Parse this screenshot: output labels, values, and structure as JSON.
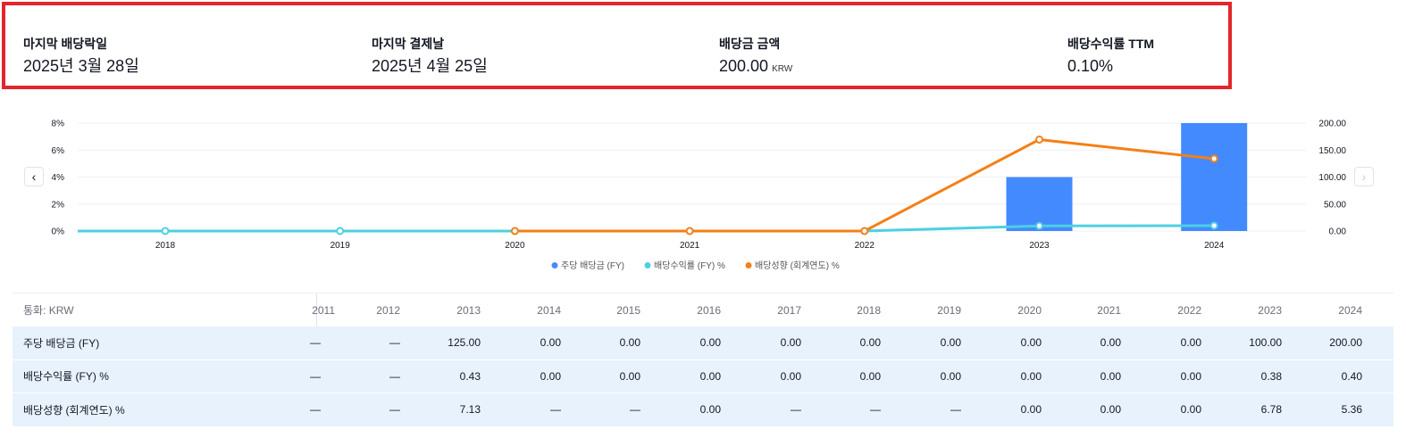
{
  "summary": {
    "ex_date_label": "마지막 배당락일",
    "ex_date_value": "2025년 3월 28일",
    "pay_date_label": "마지막 결제날",
    "pay_date_value": "2025년 4월 25일",
    "amount_label": "배당금 금액",
    "amount_value": "200.00",
    "amount_unit": "KRW",
    "yield_label": "배당수익률 TTM",
    "yield_value": "0.10%"
  },
  "nav": {
    "prev_icon": "chevron-left-icon",
    "next_icon": "chevron-right-icon"
  },
  "chart_data": {
    "type": "bar",
    "x": [
      "2018",
      "2019",
      "2020",
      "2021",
      "2022",
      "2023",
      "2024"
    ],
    "series": [
      {
        "name": "주당 배당금 (FY)",
        "type": "bar",
        "axis": "right",
        "color": "#448aff",
        "values": [
          0,
          0,
          0,
          0,
          0,
          100,
          200
        ]
      },
      {
        "name": "배당수익률 (FY) %",
        "type": "line",
        "axis": "left",
        "color": "#4dd0e1",
        "values": [
          0,
          0,
          0,
          0,
          0,
          0.38,
          0.4
        ]
      },
      {
        "name": "배당성향 (회계연도) %",
        "type": "line",
        "axis": "left",
        "color": "#f57f17",
        "values": [
          null,
          null,
          0,
          0,
          0,
          6.78,
          5.36
        ]
      }
    ],
    "left_axis": {
      "ticks": [
        "0%",
        "2%",
        "4%",
        "6%",
        "8%"
      ],
      "range": [
        0,
        8
      ]
    },
    "right_axis": {
      "ticks": [
        "0.00",
        "50.00",
        "100.00",
        "150.00",
        "200.00"
      ],
      "range": [
        0,
        200
      ]
    },
    "grid": true,
    "legend_position": "bottom"
  },
  "table": {
    "currency_label": "통화: KRW",
    "columns": [
      "2011",
      "2012",
      "2013",
      "2014",
      "2015",
      "2016",
      "2017",
      "2018",
      "2019",
      "2020",
      "2021",
      "2022",
      "2023",
      "2024"
    ],
    "rows": [
      {
        "label": "주당 배당금 (FY)",
        "values": [
          "—",
          "—",
          "125.00",
          "0.00",
          "0.00",
          "0.00",
          "0.00",
          "0.00",
          "0.00",
          "0.00",
          "0.00",
          "0.00",
          "100.00",
          "200.00"
        ]
      },
      {
        "label": "배당수익률 (FY) %",
        "values": [
          "—",
          "—",
          "0.43",
          "0.00",
          "0.00",
          "0.00",
          "0.00",
          "0.00",
          "0.00",
          "0.00",
          "0.00",
          "0.00",
          "0.38",
          "0.40"
        ]
      },
      {
        "label": "배당성향 (회계연도) %",
        "values": [
          "—",
          "—",
          "7.13",
          "—",
          "—",
          "0.00",
          "—",
          "—",
          "—",
          "0.00",
          "0.00",
          "0.00",
          "6.78",
          "5.36"
        ]
      }
    ]
  },
  "colors": {
    "highlight_border": "#e3262b",
    "row_bg": "#e8f2fd"
  }
}
